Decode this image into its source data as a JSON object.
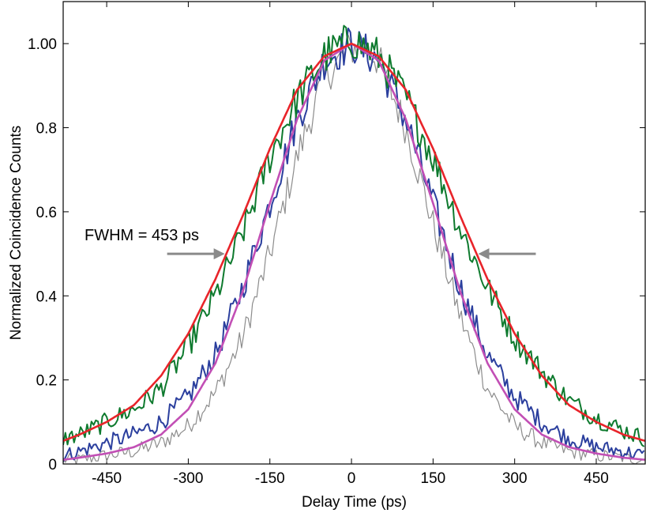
{
  "chart_data": {
    "type": "line",
    "title": "",
    "xlabel": "Delay Time (ps)",
    "ylabel": "Normalized Coincidence Counts",
    "xlim": [
      -530,
      540
    ],
    "ylim": [
      0,
      1.1
    ],
    "xticks": [
      -450,
      -300,
      -150,
      0,
      150,
      300,
      450
    ],
    "xtick_labels": [
      "-450",
      "-300",
      "-150",
      "0",
      "150",
      "300",
      "450"
    ],
    "yticks": [
      0,
      0.2,
      0.4,
      0.6,
      0.8,
      1.0
    ],
    "ytick_labels": [
      "0",
      "0.2",
      "0.4",
      "0.6",
      "0.8",
      "1.00"
    ],
    "grid": false,
    "annotation": {
      "text": "FWHM = 453 ps",
      "y": 0.5,
      "x_left": -230,
      "x_right": 230
    },
    "colors": {
      "gray": "#8c8c8c",
      "blue": "#2b3f9e",
      "green": "#0e7a2e",
      "red": "#e8242a",
      "magenta": "#c24fb5",
      "arrow": "#8a8a8a"
    },
    "series": [
      {
        "style": "noisy",
        "color": "gray",
        "x": [
          -530,
          -500,
          -450,
          -400,
          -350,
          -300,
          -250,
          -200,
          -150,
          -100,
          -50,
          0,
          25,
          50,
          100,
          150,
          200,
          250,
          300,
          350,
          400,
          450,
          500,
          540
        ],
        "y": [
          0.01,
          0.01,
          0.02,
          0.03,
          0.05,
          0.09,
          0.17,
          0.3,
          0.5,
          0.73,
          0.92,
          0.99,
          1.0,
          0.96,
          0.8,
          0.57,
          0.35,
          0.18,
          0.09,
          0.05,
          0.03,
          0.02,
          0.015,
          0.01
        ]
      },
      {
        "style": "noisy",
        "color": "blue",
        "x": [
          -530,
          -500,
          -450,
          -400,
          -350,
          -300,
          -250,
          -200,
          -150,
          -100,
          -50,
          0,
          50,
          100,
          150,
          200,
          250,
          300,
          350,
          400,
          450,
          500,
          540
        ],
        "y": [
          0.02,
          0.03,
          0.05,
          0.07,
          0.1,
          0.16,
          0.26,
          0.42,
          0.62,
          0.82,
          0.96,
          1.0,
          0.96,
          0.82,
          0.62,
          0.42,
          0.26,
          0.16,
          0.1,
          0.06,
          0.04,
          0.03,
          0.02
        ]
      },
      {
        "style": "noisy",
        "color": "green",
        "x": [
          -530,
          -500,
          -450,
          -400,
          -350,
          -300,
          -250,
          -200,
          -150,
          -100,
          -50,
          0,
          50,
          100,
          150,
          200,
          250,
          300,
          350,
          400,
          450,
          500,
          540
        ],
        "y": [
          0.06,
          0.07,
          0.1,
          0.13,
          0.18,
          0.28,
          0.4,
          0.55,
          0.73,
          0.87,
          0.97,
          1.01,
          0.97,
          0.87,
          0.73,
          0.56,
          0.42,
          0.3,
          0.22,
          0.15,
          0.11,
          0.08,
          0.06
        ]
      },
      {
        "style": "smooth",
        "color": "magenta",
        "x": [
          -530,
          -500,
          -450,
          -400,
          -350,
          -300,
          -250,
          -200,
          -150,
          -100,
          -50,
          0,
          50,
          100,
          150,
          200,
          250,
          300,
          350,
          400,
          450,
          500,
          540
        ],
        "y": [
          0.01,
          0.015,
          0.025,
          0.04,
          0.07,
          0.13,
          0.24,
          0.41,
          0.62,
          0.82,
          0.96,
          1.0,
          0.96,
          0.82,
          0.62,
          0.41,
          0.24,
          0.13,
          0.07,
          0.04,
          0.025,
          0.015,
          0.01
        ]
      },
      {
        "style": "smooth",
        "color": "red",
        "x": [
          -530,
          -500,
          -450,
          -400,
          -350,
          -300,
          -250,
          -200,
          -150,
          -100,
          -50,
          0,
          50,
          100,
          150,
          200,
          250,
          300,
          350,
          400,
          450,
          500,
          540
        ],
        "y": [
          0.055,
          0.07,
          0.1,
          0.14,
          0.21,
          0.31,
          0.44,
          0.59,
          0.75,
          0.89,
          0.97,
          1.0,
          0.97,
          0.89,
          0.75,
          0.59,
          0.44,
          0.31,
          0.21,
          0.14,
          0.1,
          0.07,
          0.055
        ]
      }
    ]
  }
}
